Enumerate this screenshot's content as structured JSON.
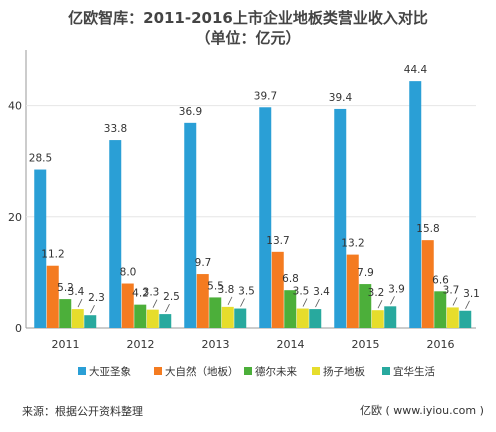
{
  "title": "亿欧智库：2011-2016上市企业地板类营业收入对比",
  "subtitle": "（单位：亿元）",
  "source": "来源：根据公开资料整理",
  "watermark": "亿欧 ( www.iyiou.com )",
  "colors": {
    "大亚圣象": "#2a9fd6",
    "大自然（地板）": "#f47b20",
    "德尔未来": "#4caf3a",
    "扬子地板": "#e6dd2c",
    "宜华生活": "#28a99e"
  },
  "chart_data": {
    "type": "bar",
    "categories": [
      "2011",
      "2012",
      "2013",
      "2014",
      "2015",
      "2016"
    ],
    "series": [
      {
        "name": "大亚圣象",
        "color": "#2a9fd6",
        "values": [
          28.5,
          33.8,
          36.9,
          39.7,
          39.4,
          44.4
        ],
        "labels": [
          "28.5",
          "33.8",
          "36.9",
          "39.7",
          "39.4",
          "44.4"
        ]
      },
      {
        "name": "大自然（地板）",
        "color": "#f47b20",
        "values": [
          11.2,
          8.0,
          9.7,
          13.7,
          13.2,
          15.8
        ],
        "labels": [
          "11.2",
          "8.0",
          "9.7",
          "13.7",
          "13.2",
          "15.8"
        ]
      },
      {
        "name": "德尔未来",
        "color": "#4caf3a",
        "values": [
          5.2,
          4.2,
          5.5,
          6.8,
          7.9,
          6.6
        ],
        "labels": [
          "5.2",
          "4.2",
          "5.5",
          "6.8",
          "7.9",
          "6.6"
        ]
      },
      {
        "name": "扬子地板",
        "color": "#e6dd2c",
        "values": [
          3.4,
          3.3,
          3.8,
          3.5,
          3.2,
          3.7
        ],
        "labels": [
          "3.4",
          "3.3",
          "3.8",
          "3.5",
          "3.2",
          "3.7"
        ]
      },
      {
        "name": "宜华生活",
        "color": "#28a99e",
        "values": [
          2.3,
          2.5,
          3.5,
          3.4,
          3.9,
          3.1
        ],
        "labels": [
          "2.3",
          "2.5",
          "3.5",
          "3.4",
          "3.9",
          "3.1"
        ]
      }
    ],
    "yticks": [
      0,
      20,
      40
    ],
    "ylim": [
      0,
      50
    ],
    "grid": true,
    "legend": "bottom"
  }
}
